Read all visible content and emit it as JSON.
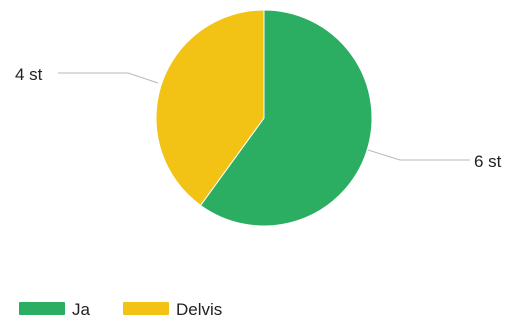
{
  "chart_data": {
    "type": "pie",
    "categories": [
      "Ja",
      "Delvis"
    ],
    "values": [
      6,
      4
    ],
    "data_labels": [
      "6 st",
      "4 st"
    ],
    "colors": [
      "#2bad62",
      "#f2c215"
    ],
    "legend_position": "bottom-left",
    "start_angle_deg": 0,
    "direction": "clockwise"
  },
  "legend": {
    "items": [
      {
        "label": "Ja",
        "color": "#2bad62"
      },
      {
        "label": "Delvis",
        "color": "#f2c215"
      }
    ]
  }
}
